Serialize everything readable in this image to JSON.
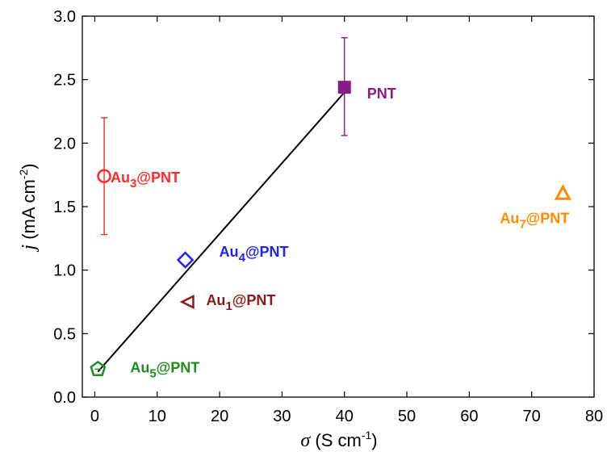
{
  "chart_data": {
    "type": "scatter",
    "xlabel": {
      "symbol": "σ",
      "unit": " (S cm",
      "sup": "-1",
      "close": ")"
    },
    "ylabel": {
      "symbol": "j",
      "unit": " (mA cm",
      "sup": "-2",
      "close": ")"
    },
    "xlim": [
      -2,
      80
    ],
    "ylim": [
      0,
      3.0
    ],
    "xticks": [
      0,
      10,
      20,
      30,
      40,
      50,
      60,
      70,
      80
    ],
    "yticks": [
      "0.0",
      "0.5",
      "1.0",
      "1.5",
      "2.0",
      "2.5",
      "3.0"
    ],
    "grid": false,
    "points": [
      {
        "key": "pnt",
        "label": {
          "base": "PNT",
          "sub": "",
          "suffix": ""
        },
        "x": 40,
        "y": 2.44,
        "err": [
          2.06,
          2.83
        ],
        "marker": "square-filled",
        "color": "#8B1A89"
      },
      {
        "key": "au3",
        "label": {
          "base": "Au",
          "sub": "3",
          "suffix": "@PNT"
        },
        "x": 1.5,
        "y": 1.74,
        "err": [
          1.28,
          2.2
        ],
        "marker": "circle",
        "color": "#FF2A2A"
      },
      {
        "key": "au4",
        "label": {
          "base": "Au",
          "sub": "4",
          "suffix": "@PNT"
        },
        "x": 14.5,
        "y": 1.08,
        "err": null,
        "marker": "diamond",
        "color": "#1F1FFF"
      },
      {
        "key": "au1",
        "label": {
          "base": "Au",
          "sub": "1",
          "suffix": "@PNT"
        },
        "x": 15,
        "y": 0.75,
        "err": null,
        "marker": "triangle-left",
        "color": "#8B1A1A"
      },
      {
        "key": "au5",
        "label": {
          "base": "Au",
          "sub": "5",
          "suffix": "@PNT"
        },
        "x": 0.5,
        "y": 0.22,
        "err": null,
        "marker": "pentagon",
        "color": "#1E8C1E"
      },
      {
        "key": "au7",
        "label": {
          "base": "Au",
          "sub": "7",
          "suffix": "@PNT"
        },
        "x": 75,
        "y": 1.6,
        "err": null,
        "marker": "triangle-up",
        "color": "#FF8C00"
      }
    ],
    "fit_line": {
      "x": [
        0.5,
        40
      ],
      "y": [
        0.2,
        2.4
      ],
      "color": "#000000"
    }
  }
}
